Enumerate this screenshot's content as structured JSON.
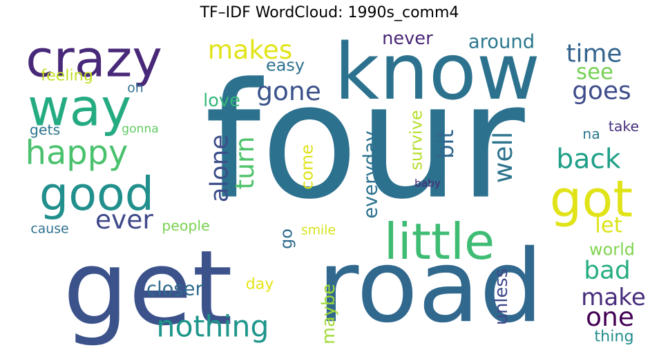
{
  "chart_data": {
    "type": "wordcloud",
    "title": "TF–IDF WordCloud: 1990s_comm4",
    "words": [
      {
        "text": "four",
        "color": "#2c718e"
      },
      {
        "text": "get",
        "color": "#3b528b"
      },
      {
        "text": "road",
        "color": "#31688e"
      },
      {
        "text": "know",
        "color": "#2c728e"
      },
      {
        "text": "crazy",
        "color": "#482878"
      },
      {
        "text": "good",
        "color": "#21908d"
      },
      {
        "text": "way",
        "color": "#25ab82"
      },
      {
        "text": "little",
        "color": "#3fbc73"
      },
      {
        "text": "got",
        "color": "#e0e317"
      },
      {
        "text": "happy",
        "color": "#4ac16d"
      },
      {
        "text": "makes",
        "color": "#e2e418"
      },
      {
        "text": "time",
        "color": "#33638d"
      },
      {
        "text": "see",
        "color": "#75d054"
      },
      {
        "text": "goes",
        "color": "#3e4c8a"
      },
      {
        "text": "gone",
        "color": "#3b528b"
      },
      {
        "text": "nothing",
        "color": "#1f968b"
      },
      {
        "text": "back",
        "color": "#1f9f88"
      },
      {
        "text": "turn",
        "color": "#4ec36b"
      },
      {
        "text": "alone",
        "color": "#3d4e8a"
      },
      {
        "text": "ever",
        "color": "#3f4889"
      },
      {
        "text": "well",
        "color": "#2c738e"
      },
      {
        "text": "bit",
        "color": "#31678e"
      },
      {
        "text": "go",
        "color": "#2f6c8e"
      },
      {
        "text": "let",
        "color": "#dde318"
      },
      {
        "text": "one",
        "color": "#440154"
      },
      {
        "text": "bad",
        "color": "#26ad81"
      },
      {
        "text": "make",
        "color": "#472d7b"
      },
      {
        "text": "around",
        "color": "#2a778e"
      },
      {
        "text": "never",
        "color": "#482677"
      },
      {
        "text": "easy",
        "color": "#2c718e"
      },
      {
        "text": "feeling",
        "color": "#c0df25"
      },
      {
        "text": "love",
        "color": "#35b779"
      },
      {
        "text": "oh",
        "color": "#2e6e8e"
      },
      {
        "text": "gets",
        "color": "#2b758e"
      },
      {
        "text": "gonna",
        "color": "#5ec962"
      },
      {
        "text": "closer",
        "color": "#306a8e"
      },
      {
        "text": "day",
        "color": "#e5e419"
      },
      {
        "text": "cause",
        "color": "#2d708e"
      },
      {
        "text": "people",
        "color": "#7ad151"
      },
      {
        "text": "smile",
        "color": "#d8e219"
      },
      {
        "text": "come",
        "color": "#dde318"
      },
      {
        "text": "survive",
        "color": "#b5de2b"
      },
      {
        "text": "everyday",
        "color": "#2c728e"
      },
      {
        "text": "baby",
        "color": "#482475"
      },
      {
        "text": "take",
        "color": "#46307e"
      },
      {
        "text": "na",
        "color": "#2a788e"
      },
      {
        "text": "world",
        "color": "#7fd34e"
      },
      {
        "text": "maybe",
        "color": "#a2da37"
      },
      {
        "text": "unless",
        "color": "#3e4989"
      },
      {
        "text": "thing",
        "color": "#228c8d"
      }
    ]
  }
}
